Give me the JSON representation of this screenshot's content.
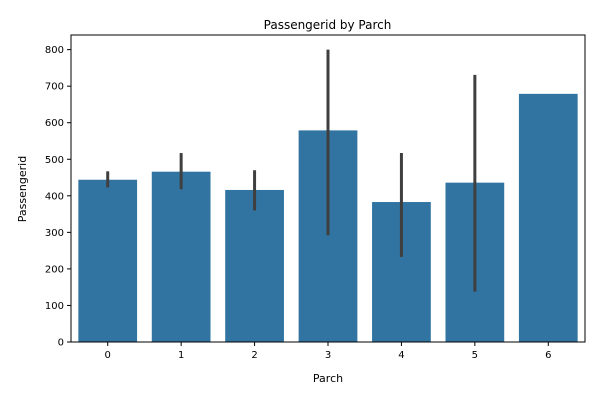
{
  "chart_data": {
    "type": "bar",
    "title": "Passengerid by Parch",
    "xlabel": "Parch",
    "ylabel": "Passengerid",
    "categories": [
      "0",
      "1",
      "2",
      "3",
      "4",
      "5",
      "6"
    ],
    "values": [
      444,
      466,
      416,
      579,
      383,
      436,
      679
    ],
    "ci_low": [
      423,
      418,
      360,
      292,
      233,
      138,
      679
    ],
    "ci_high": [
      467,
      517,
      470,
      800,
      517,
      731,
      679
    ],
    "yticks": [
      0,
      100,
      200,
      300,
      400,
      500,
      600,
      700,
      800
    ],
    "ylim": [
      0,
      840
    ],
    "grid": false,
    "bar_color": "#3274a1",
    "error_color": "#3f3f3f"
  }
}
